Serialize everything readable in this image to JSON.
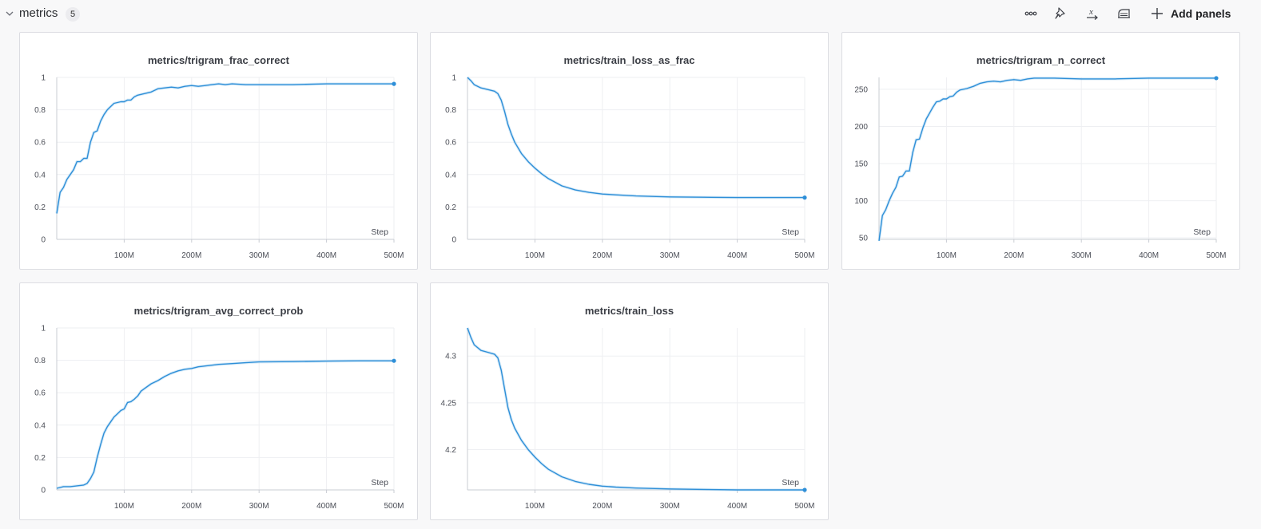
{
  "section": {
    "title": "metrics",
    "count": "5",
    "add_panels_label": "Add panels",
    "toolbar_icons": [
      "more-options-icon",
      "pin-icon",
      "x-axis-icon",
      "smoothing-icon",
      "add-icon"
    ]
  },
  "colors": {
    "line": "#2e8fd8",
    "shade": "#a9d2f0",
    "grid": "#eeeff2",
    "axis": "#c9ccd3"
  },
  "chart_data": [
    {
      "type": "line",
      "title": "metrics/trigram_frac_correct",
      "xlabel": "Step",
      "ylim": [
        0,
        1
      ],
      "yticks": [
        0,
        0.2,
        0.4,
        0.6,
        0.8,
        1
      ],
      "ytick_labels": [
        "0",
        "0.2",
        "0.4",
        "0.6",
        "0.8",
        "1"
      ],
      "xlim": [
        0,
        500000000
      ],
      "xticks": [
        100000000,
        200000000,
        300000000,
        400000000,
        500000000
      ],
      "xtick_labels": [
        "100M",
        "200M",
        "300M",
        "400M",
        "500M"
      ],
      "grid": true,
      "series": [
        {
          "x": [
            0,
            5000000,
            10000000,
            15000000,
            20000000,
            25000000,
            30000000,
            35000000,
            40000000,
            45000000,
            50000000,
            55000000,
            60000000,
            65000000,
            70000000,
            75000000,
            80000000,
            85000000,
            90000000,
            95000000,
            100000000,
            105000000,
            110000000,
            115000000,
            120000000,
            130000000,
            140000000,
            150000000,
            160000000,
            170000000,
            180000000,
            190000000,
            200000000,
            210000000,
            220000000,
            230000000,
            240000000,
            250000000,
            260000000,
            280000000,
            300000000,
            350000000,
            400000000,
            450000000,
            500000000
          ],
          "y": [
            0.16,
            0.29,
            0.32,
            0.37,
            0.4,
            0.43,
            0.48,
            0.48,
            0.5,
            0.5,
            0.6,
            0.66,
            0.67,
            0.73,
            0.77,
            0.8,
            0.82,
            0.84,
            0.845,
            0.85,
            0.85,
            0.86,
            0.86,
            0.88,
            0.89,
            0.9,
            0.91,
            0.93,
            0.935,
            0.94,
            0.935,
            0.945,
            0.95,
            0.945,
            0.95,
            0.955,
            0.96,
            0.955,
            0.96,
            0.955,
            0.955,
            0.955,
            0.96,
            0.96,
            0.96
          ]
        }
      ]
    },
    {
      "type": "line",
      "title": "metrics/train_loss_as_frac",
      "xlabel": "Step",
      "ylim": [
        0,
        1
      ],
      "yticks": [
        0,
        0.2,
        0.4,
        0.6,
        0.8,
        1
      ],
      "ytick_labels": [
        "0",
        "0.2",
        "0.4",
        "0.6",
        "0.8",
        "1"
      ],
      "xlim": [
        0,
        500000000
      ],
      "xticks": [
        100000000,
        200000000,
        300000000,
        400000000,
        500000000
      ],
      "xtick_labels": [
        "100M",
        "200M",
        "300M",
        "400M",
        "500M"
      ],
      "grid": true,
      "series": [
        {
          "x": [
            0,
            5000000,
            10000000,
            20000000,
            30000000,
            40000000,
            45000000,
            50000000,
            55000000,
            60000000,
            65000000,
            70000000,
            80000000,
            90000000,
            100000000,
            110000000,
            120000000,
            140000000,
            160000000,
            180000000,
            200000000,
            220000000,
            250000000,
            300000000,
            350000000,
            400000000,
            450000000,
            500000000
          ],
          "y": [
            1.0,
            0.98,
            0.955,
            0.935,
            0.925,
            0.915,
            0.9,
            0.86,
            0.79,
            0.71,
            0.65,
            0.6,
            0.53,
            0.48,
            0.44,
            0.405,
            0.375,
            0.33,
            0.305,
            0.29,
            0.28,
            0.275,
            0.268,
            0.262,
            0.26,
            0.258,
            0.258,
            0.258
          ]
        }
      ]
    },
    {
      "type": "line",
      "title": "metrics/trigram_n_correct",
      "xlabel": "Step",
      "ylim": [
        48,
        266
      ],
      "yticks": [
        50,
        100,
        150,
        200,
        250
      ],
      "ytick_labels": [
        "50",
        "100",
        "150",
        "200",
        "250"
      ],
      "xlim": [
        0,
        500000000
      ],
      "xticks": [
        100000000,
        200000000,
        300000000,
        400000000,
        500000000
      ],
      "xtick_labels": [
        "100M",
        "200M",
        "300M",
        "400M",
        "500M"
      ],
      "grid": true,
      "series": [
        {
          "x": [
            0,
            5000000,
            10000000,
            15000000,
            20000000,
            25000000,
            30000000,
            35000000,
            40000000,
            45000000,
            50000000,
            55000000,
            60000000,
            65000000,
            70000000,
            75000000,
            80000000,
            85000000,
            90000000,
            95000000,
            100000000,
            105000000,
            110000000,
            115000000,
            120000000,
            130000000,
            140000000,
            150000000,
            160000000,
            170000000,
            180000000,
            190000000,
            200000000,
            210000000,
            220000000,
            230000000,
            240000000,
            260000000,
            300000000,
            350000000,
            400000000,
            450000000,
            500000000
          ],
          "y": [
            46,
            80,
            88,
            100,
            110,
            118,
            132,
            133,
            140,
            140,
            165,
            182,
            183,
            198,
            210,
            218,
            226,
            233,
            234,
            237,
            237,
            240,
            241,
            246,
            249,
            251,
            254,
            258,
            260,
            261,
            260,
            262,
            263,
            262,
            264,
            265,
            265,
            265,
            264,
            264,
            265,
            265,
            265
          ]
        }
      ]
    },
    {
      "type": "line",
      "title": "metrics/trigram_avg_correct_prob",
      "xlabel": "Step",
      "ylim": [
        0,
        1
      ],
      "yticks": [
        0,
        0.2,
        0.4,
        0.6,
        0.8,
        1
      ],
      "ytick_labels": [
        "0",
        "0.2",
        "0.4",
        "0.6",
        "0.8",
        "1"
      ],
      "xlim": [
        0,
        500000000
      ],
      "xticks": [
        100000000,
        200000000,
        300000000,
        400000000,
        500000000
      ],
      "xtick_labels": [
        "100M",
        "200M",
        "300M",
        "400M",
        "500M"
      ],
      "grid": true,
      "series": [
        {
          "x": [
            0,
            10000000,
            20000000,
            30000000,
            40000000,
            45000000,
            50000000,
            55000000,
            60000000,
            65000000,
            70000000,
            75000000,
            80000000,
            85000000,
            90000000,
            95000000,
            100000000,
            105000000,
            110000000,
            115000000,
            120000000,
            125000000,
            130000000,
            140000000,
            150000000,
            160000000,
            170000000,
            180000000,
            190000000,
            200000000,
            210000000,
            220000000,
            240000000,
            260000000,
            280000000,
            300000000,
            350000000,
            400000000,
            450000000,
            500000000
          ],
          "y": [
            0.01,
            0.02,
            0.02,
            0.025,
            0.03,
            0.04,
            0.07,
            0.11,
            0.2,
            0.28,
            0.35,
            0.39,
            0.42,
            0.45,
            0.47,
            0.49,
            0.5,
            0.54,
            0.545,
            0.56,
            0.58,
            0.61,
            0.625,
            0.655,
            0.675,
            0.7,
            0.72,
            0.735,
            0.745,
            0.75,
            0.76,
            0.765,
            0.775,
            0.78,
            0.785,
            0.79,
            0.792,
            0.795,
            0.797,
            0.797
          ]
        }
      ]
    },
    {
      "type": "line",
      "title": "metrics/train_loss",
      "xlabel": "Step",
      "ylim": [
        4.157,
        4.33
      ],
      "yticks": [
        4.2,
        4.25,
        4.3
      ],
      "ytick_labels": [
        "4.2",
        "4.25",
        "4.3"
      ],
      "xlim": [
        0,
        500000000
      ],
      "xticks": [
        100000000,
        200000000,
        300000000,
        400000000,
        500000000
      ],
      "xtick_labels": [
        "100M",
        "200M",
        "300M",
        "400M",
        "500M"
      ],
      "grid": true,
      "series": [
        {
          "x": [
            0,
            5000000,
            10000000,
            20000000,
            30000000,
            40000000,
            45000000,
            50000000,
            55000000,
            60000000,
            65000000,
            70000000,
            80000000,
            90000000,
            100000000,
            110000000,
            120000000,
            140000000,
            160000000,
            180000000,
            200000000,
            220000000,
            250000000,
            300000000,
            350000000,
            400000000,
            450000000,
            500000000
          ],
          "y": [
            4.33,
            4.32,
            4.312,
            4.306,
            4.304,
            4.302,
            4.298,
            4.285,
            4.265,
            4.245,
            4.232,
            4.223,
            4.21,
            4.2,
            4.192,
            4.185,
            4.179,
            4.171,
            4.166,
            4.163,
            4.161,
            4.16,
            4.159,
            4.158,
            4.1575,
            4.157,
            4.157,
            4.157
          ]
        }
      ]
    }
  ]
}
